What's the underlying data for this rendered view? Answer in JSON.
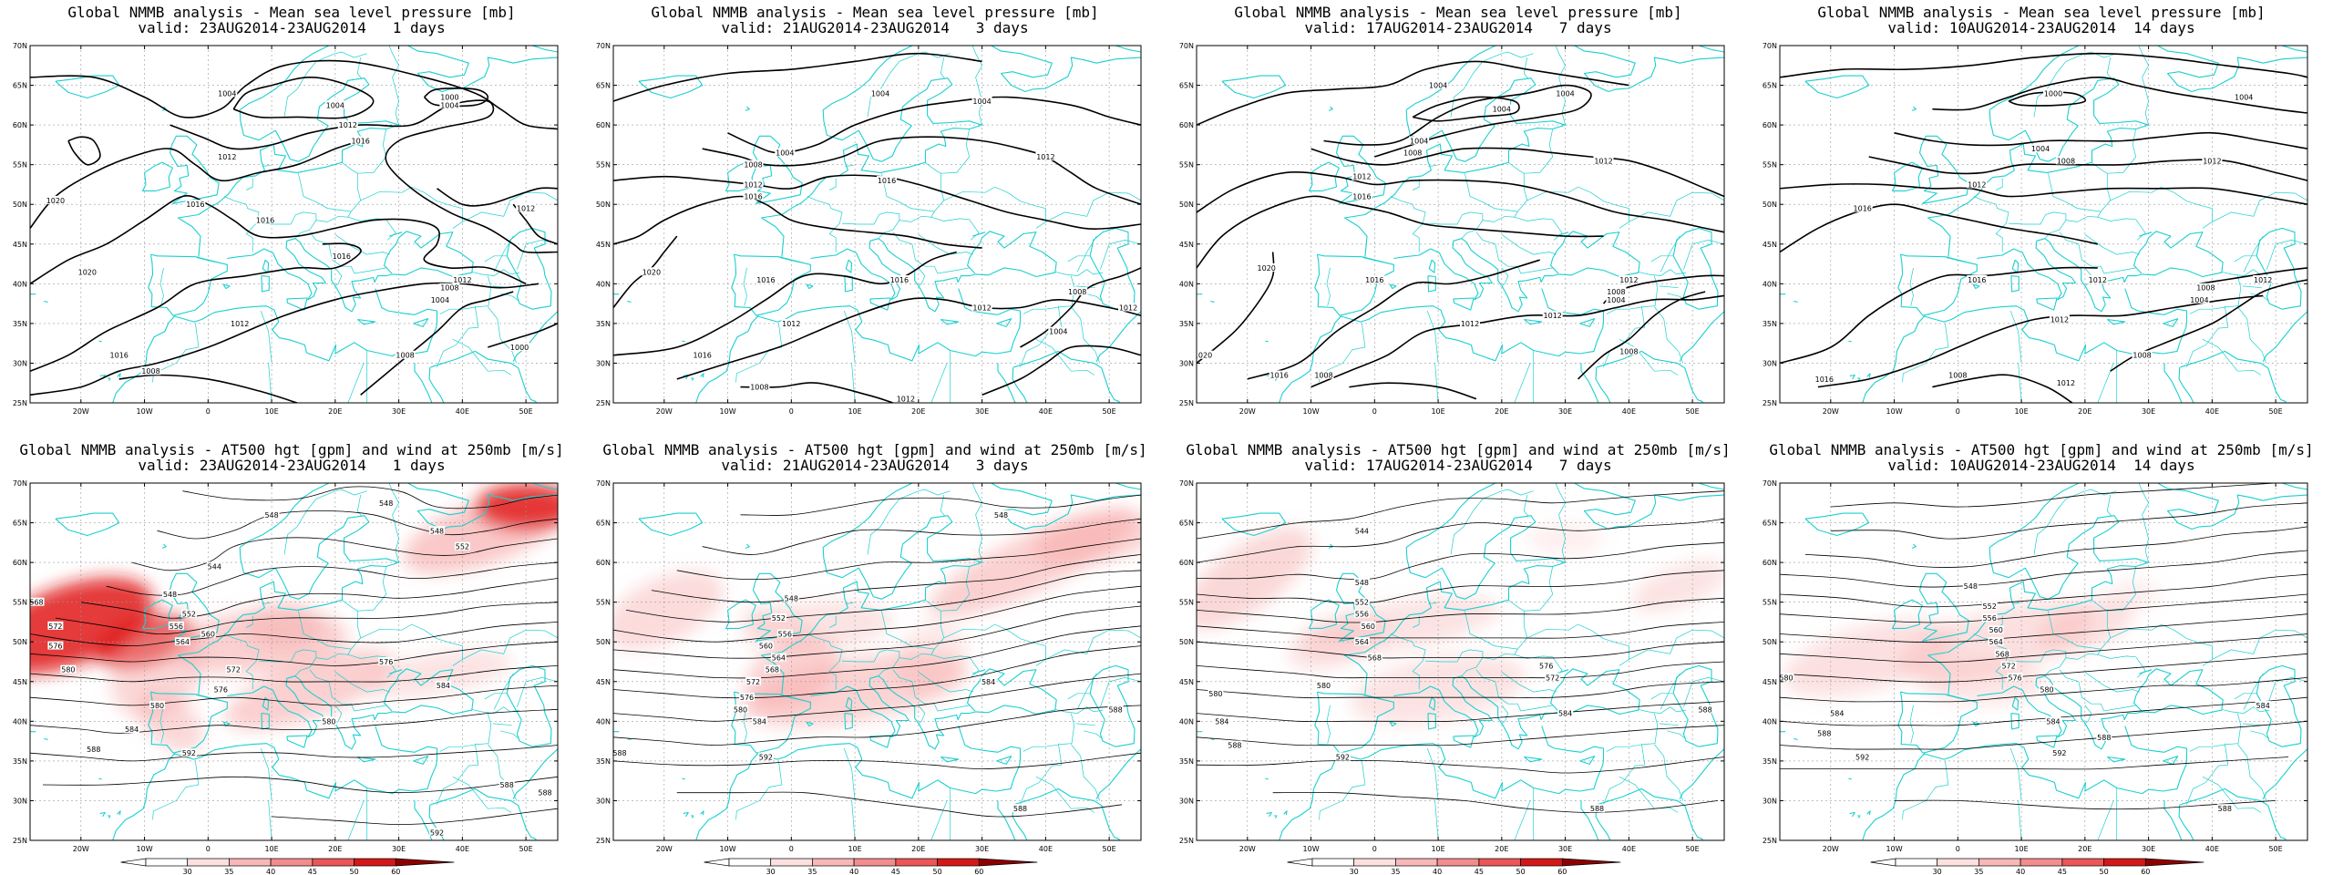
{
  "figure": {
    "rows": [
      {
        "kind": "mslp",
        "title_line1": "Global NMMB analysis - Mean sea level pressure [mb]",
        "panels": [
          {
            "valid": "valid: 23AUG2014-23AUG2014   1 days"
          },
          {
            "valid": "valid: 21AUG2014-23AUG2014   3 days"
          },
          {
            "valid": "valid: 17AUG2014-23AUG2014   7 days"
          },
          {
            "valid": "valid: 10AUG2014-23AUG2014  14 days"
          }
        ]
      },
      {
        "kind": "z500",
        "title_line1": "Global NMMB analysis - AT500 hgt [gpm] and wind at 250mb [m/s]",
        "panels": [
          {
            "valid": "valid: 23AUG2014-23AUG2014   1 days"
          },
          {
            "valid": "valid: 21AUG2014-23AUG2014   3 days"
          },
          {
            "valid": "valid: 17AUG2014-23AUG2014   7 days"
          },
          {
            "valid": "valid: 10AUG2014-23AUG2014  14 days"
          }
        ]
      }
    ],
    "lat_labels": [
      "70N",
      "65N",
      "60N",
      "55N",
      "50N",
      "45N",
      "40N",
      "35N",
      "30N",
      "25N"
    ],
    "lon_labels": [
      "20W",
      "10W",
      "0",
      "10E",
      "20E",
      "30E",
      "40E",
      "50E"
    ],
    "lat_range": [
      25,
      70
    ],
    "lon_range": [
      -28,
      55
    ],
    "mslp_labels": [
      [
        {
          "text": "1004",
          "lon": 3,
          "lat": 64
        },
        {
          "text": "1000",
          "lon": 38,
          "lat": 63.5
        },
        {
          "text": "1004",
          "lon": 38,
          "lat": 62.5
        },
        {
          "text": "1004",
          "lon": 20,
          "lat": 62.5
        },
        {
          "text": "1012",
          "lon": 22,
          "lat": 60
        },
        {
          "text": "1016",
          "lon": 24,
          "lat": 58
        },
        {
          "text": "1012",
          "lon": 3,
          "lat": 56
        },
        {
          "text": "1020",
          "lon": -24,
          "lat": 50.5
        },
        {
          "text": "1016",
          "lon": -2,
          "lat": 50
        },
        {
          "text": "1016",
          "lon": 9,
          "lat": 48
        },
        {
          "text": "1016",
          "lon": 21,
          "lat": 43.5
        },
        {
          "text": "1012",
          "lon": 40,
          "lat": 40.5
        },
        {
          "text": "1012",
          "lon": 50,
          "lat": 49.5
        },
        {
          "text": "1008",
          "lon": 38,
          "lat": 39.5
        },
        {
          "text": "1004",
          "lon": 36.5,
          "lat": 38
        },
        {
          "text": "1020",
          "lon": -19,
          "lat": 41.5
        },
        {
          "text": "1012",
          "lon": 5,
          "lat": 35
        },
        {
          "text": "1016",
          "lon": -14,
          "lat": 31
        },
        {
          "text": "1008",
          "lon": -9,
          "lat": 29
        },
        {
          "text": "1008",
          "lon": 31,
          "lat": 31
        },
        {
          "text": "1000",
          "lon": 49,
          "lat": 32
        }
      ],
      [
        {
          "text": "1004",
          "lon": 14,
          "lat": 64
        },
        {
          "text": "1004",
          "lon": 30,
          "lat": 63
        },
        {
          "text": "1004",
          "lon": -1,
          "lat": 56.5
        },
        {
          "text": "1008",
          "lon": -6,
          "lat": 55
        },
        {
          "text": "1012",
          "lon": 40,
          "lat": 56
        },
        {
          "text": "1012",
          "lon": -6,
          "lat": 52.5
        },
        {
          "text": "1016",
          "lon": -6,
          "lat": 51
        },
        {
          "text": "1016",
          "lon": 15,
          "lat": 53
        },
        {
          "text": "1016",
          "lon": -4,
          "lat": 40.5
        },
        {
          "text": "1016",
          "lon": 17,
          "lat": 40.5
        },
        {
          "text": "1020",
          "lon": -22,
          "lat": 41.5
        },
        {
          "text": "1012",
          "lon": 30,
          "lat": 37
        },
        {
          "text": "1008",
          "lon": 45,
          "lat": 39
        },
        {
          "text": "1012",
          "lon": 53,
          "lat": 37
        },
        {
          "text": "1004",
          "lon": 42,
          "lat": 34
        },
        {
          "text": "1012",
          "lon": 0,
          "lat": 35
        },
        {
          "text": "1016",
          "lon": -14,
          "lat": 31
        },
        {
          "text": "1008",
          "lon": -5,
          "lat": 27
        },
        {
          "text": "1012",
          "lon": 18,
          "lat": 25.5
        }
      ],
      [
        {
          "text": "1004",
          "lon": 20,
          "lat": 62
        },
        {
          "text": "1004",
          "lon": 10,
          "lat": 65
        },
        {
          "text": "1004",
          "lon": 30,
          "lat": 64
        },
        {
          "text": "1004",
          "lon": 7,
          "lat": 58
        },
        {
          "text": "1008",
          "lon": 6,
          "lat": 56.5
        },
        {
          "text": "1012",
          "lon": 36,
          "lat": 55.5
        },
        {
          "text": "1012",
          "lon": -2,
          "lat": 53.5
        },
        {
          "text": "1016",
          "lon": -2,
          "lat": 51
        },
        {
          "text": "1020",
          "lon": -17,
          "lat": 42
        },
        {
          "text": "1016",
          "lon": 0,
          "lat": 40.5
        },
        {
          "text": "1012",
          "lon": 40,
          "lat": 40.5
        },
        {
          "text": "1008",
          "lon": 38,
          "lat": 39
        },
        {
          "text": "1004",
          "lon": 38,
          "lat": 38
        },
        {
          "text": "1012",
          "lon": 15,
          "lat": 35
        },
        {
          "text": "1012",
          "lon": 28,
          "lat": 36
        },
        {
          "text": "1008",
          "lon": 40,
          "lat": 31.5
        },
        {
          "text": "1016",
          "lon": -15,
          "lat": 28.5
        },
        {
          "text": "1008",
          "lon": -8,
          "lat": 28.5
        },
        {
          "text": "1020",
          "lon": -27,
          "lat": 31
        }
      ],
      [
        {
          "text": "1000",
          "lon": 15,
          "lat": 64
        },
        {
          "text": "1004",
          "lon": 45,
          "lat": 63.5
        },
        {
          "text": "1004",
          "lon": 13,
          "lat": 57
        },
        {
          "text": "1008",
          "lon": 17,
          "lat": 55.5
        },
        {
          "text": "1012",
          "lon": 40,
          "lat": 55.5
        },
        {
          "text": "1012",
          "lon": 3,
          "lat": 52.5
        },
        {
          "text": "1016",
          "lon": -15,
          "lat": 49.5
        },
        {
          "text": "1016",
          "lon": 3,
          "lat": 40.5
        },
        {
          "text": "1012",
          "lon": 22,
          "lat": 40.5
        },
        {
          "text": "1008",
          "lon": 39,
          "lat": 39.5
        },
        {
          "text": "1012",
          "lon": 48,
          "lat": 40.5
        },
        {
          "text": "1004",
          "lon": 38,
          "lat": 38
        },
        {
          "text": "1012",
          "lon": 16,
          "lat": 35.5
        },
        {
          "text": "1008",
          "lon": 29,
          "lat": 31
        },
        {
          "text": "1008",
          "lon": 0,
          "lat": 28.5
        },
        {
          "text": "1012",
          "lon": 17,
          "lat": 27.5
        },
        {
          "text": "1016",
          "lon": -21,
          "lat": 28
        }
      ]
    ],
    "z500_labels": [
      [
        {
          "text": "548",
          "lon": 28,
          "lat": 67.5
        },
        {
          "text": "548",
          "lon": 10,
          "lat": 66
        },
        {
          "text": "548",
          "lon": 36,
          "lat": 64
        },
        {
          "text": "552",
          "lon": 40,
          "lat": 62
        },
        {
          "text": "544",
          "lon": 1,
          "lat": 59.5
        },
        {
          "text": "548",
          "lon": -6,
          "lat": 56
        },
        {
          "text": "552",
          "lon": -3,
          "lat": 53.5
        },
        {
          "text": "556",
          "lon": -5,
          "lat": 52
        },
        {
          "text": "560",
          "lon": 0,
          "lat": 51
        },
        {
          "text": "564",
          "lon": -4,
          "lat": 50
        },
        {
          "text": "568",
          "lon": -27,
          "lat": 55
        },
        {
          "text": "572",
          "lon": -24,
          "lat": 52
        },
        {
          "text": "576",
          "lon": -24,
          "lat": 49.5
        },
        {
          "text": "580",
          "lon": -22,
          "lat": 46.5
        },
        {
          "text": "572",
          "lon": 4,
          "lat": 46.5
        },
        {
          "text": "576",
          "lon": 2,
          "lat": 44
        },
        {
          "text": "580",
          "lon": -8,
          "lat": 42
        },
        {
          "text": "584",
          "lon": -12,
          "lat": 39
        },
        {
          "text": "588",
          "lon": -18,
          "lat": 36.5
        },
        {
          "text": "592",
          "lon": -3,
          "lat": 36
        },
        {
          "text": "580",
          "lon": 19,
          "lat": 40
        },
        {
          "text": "584",
          "lon": 37,
          "lat": 44.5
        },
        {
          "text": "576",
          "lon": 28,
          "lat": 47.5
        },
        {
          "text": "588",
          "lon": 47,
          "lat": 32
        },
        {
          "text": "588",
          "lon": 53,
          "lat": 31
        },
        {
          "text": "592",
          "lon": 36,
          "lat": 26
        }
      ],
      [
        {
          "text": "548",
          "lon": 33,
          "lat": 66
        },
        {
          "text": "548",
          "lon": 0,
          "lat": 55.5
        },
        {
          "text": "552",
          "lon": -2,
          "lat": 53
        },
        {
          "text": "556",
          "lon": -1,
          "lat": 51
        },
        {
          "text": "560",
          "lon": -4,
          "lat": 49.5
        },
        {
          "text": "564",
          "lon": -2,
          "lat": 48
        },
        {
          "text": "568",
          "lon": -3,
          "lat": 46.5
        },
        {
          "text": "572",
          "lon": -6,
          "lat": 45
        },
        {
          "text": "576",
          "lon": -7,
          "lat": 43
        },
        {
          "text": "580",
          "lon": -8,
          "lat": 41.5
        },
        {
          "text": "584",
          "lon": -5,
          "lat": 40
        },
        {
          "text": "588",
          "lon": -27,
          "lat": 36
        },
        {
          "text": "592",
          "lon": -4,
          "lat": 35.5
        },
        {
          "text": "584",
          "lon": 31,
          "lat": 45
        },
        {
          "text": "588",
          "lon": 51,
          "lat": 41.5
        },
        {
          "text": "588",
          "lon": 36,
          "lat": 29
        }
      ],
      [
        {
          "text": "544",
          "lon": -2,
          "lat": 64
        },
        {
          "text": "548",
          "lon": -2,
          "lat": 57.5
        },
        {
          "text": "552",
          "lon": -2,
          "lat": 55
        },
        {
          "text": "556",
          "lon": -2,
          "lat": 53.5
        },
        {
          "text": "560",
          "lon": -1,
          "lat": 52
        },
        {
          "text": "564",
          "lon": -2,
          "lat": 50
        },
        {
          "text": "568",
          "lon": 0,
          "lat": 48
        },
        {
          "text": "576",
          "lon": 27,
          "lat": 47
        },
        {
          "text": "572",
          "lon": 28,
          "lat": 45.5
        },
        {
          "text": "580",
          "lon": -8,
          "lat": 44.5
        },
        {
          "text": "580",
          "lon": -25,
          "lat": 43.5
        },
        {
          "text": "584",
          "lon": -24,
          "lat": 40
        },
        {
          "text": "588",
          "lon": -22,
          "lat": 37
        },
        {
          "text": "592",
          "lon": -5,
          "lat": 35.5
        },
        {
          "text": "584",
          "lon": 30,
          "lat": 41
        },
        {
          "text": "588",
          "lon": 52,
          "lat": 41.5
        },
        {
          "text": "588",
          "lon": 35,
          "lat": 29
        }
      ],
      [
        {
          "text": "548",
          "lon": 2,
          "lat": 57
        },
        {
          "text": "552",
          "lon": 5,
          "lat": 54.5
        },
        {
          "text": "556",
          "lon": 5,
          "lat": 53
        },
        {
          "text": "560",
          "lon": 6,
          "lat": 51.5
        },
        {
          "text": "564",
          "lon": 6,
          "lat": 50
        },
        {
          "text": "568",
          "lon": 7,
          "lat": 48.5
        },
        {
          "text": "572",
          "lon": 8,
          "lat": 47
        },
        {
          "text": "576",
          "lon": 9,
          "lat": 45.5
        },
        {
          "text": "580",
          "lon": 14,
          "lat": 44
        },
        {
          "text": "580",
          "lon": -27,
          "lat": 45.5
        },
        {
          "text": "584",
          "lon": -19,
          "lat": 41
        },
        {
          "text": "588",
          "lon": -21,
          "lat": 38.5
        },
        {
          "text": "592",
          "lon": -15,
          "lat": 35.5
        },
        {
          "text": "584",
          "lon": 15,
          "lat": 40
        },
        {
          "text": "588",
          "lon": 23,
          "lat": 38
        },
        {
          "text": "592",
          "lon": 16,
          "lat": 36
        },
        {
          "text": "584",
          "lon": 48,
          "lat": 42
        },
        {
          "text": "588",
          "lon": 42,
          "lat": 29
        }
      ]
    ],
    "colorbar": {
      "labels": [
        "30",
        "35",
        "40",
        "45",
        "50",
        "60"
      ],
      "colors": [
        "#ffffff",
        "#fde0e0",
        "#f9b7b7",
        "#f38d8d",
        "#ec5656",
        "#d41818",
        "#8e0000"
      ]
    },
    "colors": {
      "coast": "#1ccfcf",
      "contour": "#000000",
      "grid": "#999999",
      "jet_light": "#f7a8a8",
      "jet_dark": "#e01818"
    }
  }
}
